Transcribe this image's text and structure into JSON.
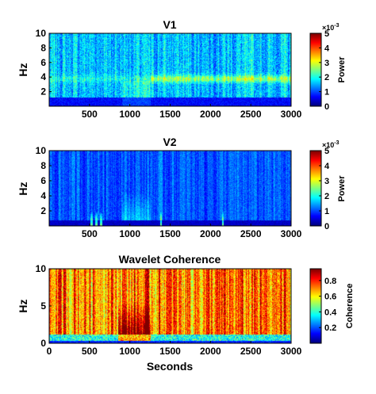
{
  "chart_data": [
    {
      "type": "heatmap",
      "title": "V1",
      "ylabel": "Hz",
      "xlabel": "",
      "xlim": [
        0,
        3000
      ],
      "ylim": [
        0,
        10
      ],
      "xticks": [
        "500",
        "1000",
        "1500",
        "2000",
        "2500",
        "3000"
      ],
      "yticks": [
        "2",
        "4",
        "6",
        "8",
        "10"
      ],
      "colorbar": {
        "label": "Power",
        "ticks": [
          "0",
          "1",
          "2",
          "3",
          "4",
          "5"
        ],
        "range": [
          0,
          5
        ],
        "exponent_base": "×10",
        "exponent_power": "-3"
      },
      "colormap": "jet",
      "grid": false
    },
    {
      "type": "heatmap",
      "title": "V2",
      "ylabel": "Hz",
      "xlabel": "",
      "xlim": [
        0,
        3000
      ],
      "ylim": [
        0,
        10
      ],
      "xticks": [
        "500",
        "1000",
        "1500",
        "2000",
        "2500",
        "3000"
      ],
      "yticks": [
        "2",
        "4",
        "6",
        "8",
        "10"
      ],
      "colorbar": {
        "label": "Power",
        "ticks": [
          "0",
          "1",
          "2",
          "3",
          "4",
          "5"
        ],
        "range": [
          0,
          5
        ],
        "exponent_base": "×10",
        "exponent_power": "-3"
      },
      "colormap": "jet",
      "grid": false
    },
    {
      "type": "heatmap",
      "title": "Wavelet Coherence",
      "ylabel": "Hz",
      "xlabel": "Seconds",
      "xlim": [
        0,
        3000
      ],
      "ylim": [
        0,
        10
      ],
      "xticks": [
        "0",
        "500",
        "1000",
        "1500",
        "2000",
        "2500",
        "3000"
      ],
      "yticks": [
        "0",
        "5",
        "10"
      ],
      "colorbar": {
        "label": "Coherence",
        "ticks": [
          "0.2",
          "0.4",
          "0.6",
          "0.8"
        ],
        "range": [
          0,
          0.95
        ]
      },
      "colormap": "jet",
      "grid": false
    }
  ]
}
